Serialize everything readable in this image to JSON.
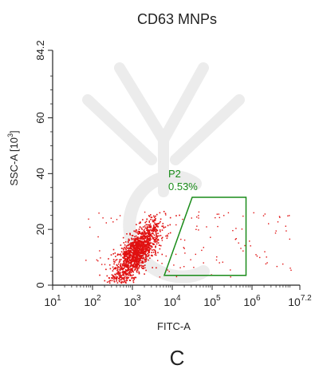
{
  "panel_label": "C",
  "colors": {
    "points": "#e01010",
    "gate": "#1a8c1a",
    "axis": "#222222",
    "watermark": "#e6e6e6"
  },
  "chart_data": {
    "type": "scatter",
    "title": "CD63 MNPs",
    "xlabel": "FITC-A",
    "ylabel_text": "SSC-A [10",
    "ylabel_exp": "3",
    "ylabel_close": "]",
    "xscale": "log",
    "x_range": [
      10,
      15848932
    ],
    "ylim": [
      0,
      84.2
    ],
    "x_ticks": [
      {
        "base": "10",
        "exp": "1",
        "value": 10
      },
      {
        "base": "10",
        "exp": "2",
        "value": 100
      },
      {
        "base": "10",
        "exp": "3",
        "value": 1000
      },
      {
        "base": "10",
        "exp": "4",
        "value": 10000
      },
      {
        "base": "10",
        "exp": "5",
        "value": 100000
      },
      {
        "base": "10",
        "exp": "6",
        "value": 1000000
      },
      {
        "base": "10",
        "exp": "7.2",
        "value": 15848932
      }
    ],
    "y_ticks": [
      {
        "label": "0",
        "value": 0
      },
      {
        "label": "20",
        "value": 20
      },
      {
        "label": "40",
        "value": 40
      },
      {
        "label": "60",
        "value": 60
      },
      {
        "label": "84.2",
        "value": 84.2
      }
    ],
    "grid": false,
    "population": {
      "description_center_x_log10": 3.1,
      "description_center_y": 12,
      "approx_count": 1400
    },
    "gate": {
      "name": "P2",
      "percent": "0.53%",
      "vertices": [
        {
          "x": 6310,
          "y": 3.5
        },
        {
          "x": 31623,
          "y": 31.5
        },
        {
          "x": 707946,
          "y": 31.5
        },
        {
          "x": 707946,
          "y": 3.5
        }
      ]
    }
  }
}
